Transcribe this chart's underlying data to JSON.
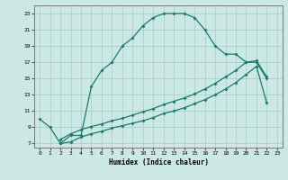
{
  "title": "",
  "xlabel": "Humidex (Indice chaleur)",
  "bg_color": "#cce8e4",
  "grid_color": "#aacfcc",
  "line_color": "#1a7a6e",
  "xlim": [
    -0.5,
    23.5
  ],
  "ylim": [
    6.5,
    24
  ],
  "xticks": [
    0,
    1,
    2,
    3,
    4,
    5,
    6,
    7,
    8,
    9,
    10,
    11,
    12,
    13,
    14,
    15,
    16,
    17,
    18,
    19,
    20,
    21,
    22,
    23
  ],
  "yticks": [
    7,
    9,
    11,
    13,
    15,
    17,
    19,
    21,
    23
  ],
  "curve_x": [
    0,
    1,
    2,
    3,
    4,
    5,
    6,
    7,
    8,
    9,
    10,
    11,
    12,
    13,
    14,
    15,
    16,
    17,
    18,
    19,
    20,
    21,
    22
  ],
  "curve_y": [
    10,
    9,
    7,
    8,
    8,
    14,
    16,
    17,
    19,
    20,
    21.5,
    22.5,
    23,
    23,
    23,
    22.5,
    21,
    19,
    18,
    18,
    17,
    17,
    15
  ],
  "line2_x": [
    2,
    3,
    4,
    5,
    6,
    7,
    8,
    9,
    10,
    11,
    12,
    13,
    14,
    15,
    16,
    17,
    18,
    19,
    20,
    21,
    22
  ],
  "line2_y": [
    7,
    7.2,
    7.8,
    8.2,
    8.5,
    8.9,
    9.2,
    9.5,
    9.8,
    10.2,
    10.7,
    11.0,
    11.4,
    11.9,
    12.4,
    13.0,
    13.7,
    14.5,
    15.5,
    16.5,
    12.0
  ],
  "line3_x": [
    2,
    3,
    4,
    5,
    6,
    7,
    8,
    9,
    10,
    11,
    12,
    13,
    14,
    15,
    16,
    17,
    18,
    19,
    20,
    21,
    22
  ],
  "line3_y": [
    7.5,
    8.2,
    8.7,
    9.1,
    9.4,
    9.8,
    10.1,
    10.5,
    10.9,
    11.3,
    11.8,
    12.2,
    12.6,
    13.1,
    13.7,
    14.4,
    15.2,
    16.0,
    17.0,
    17.2,
    15.2
  ]
}
